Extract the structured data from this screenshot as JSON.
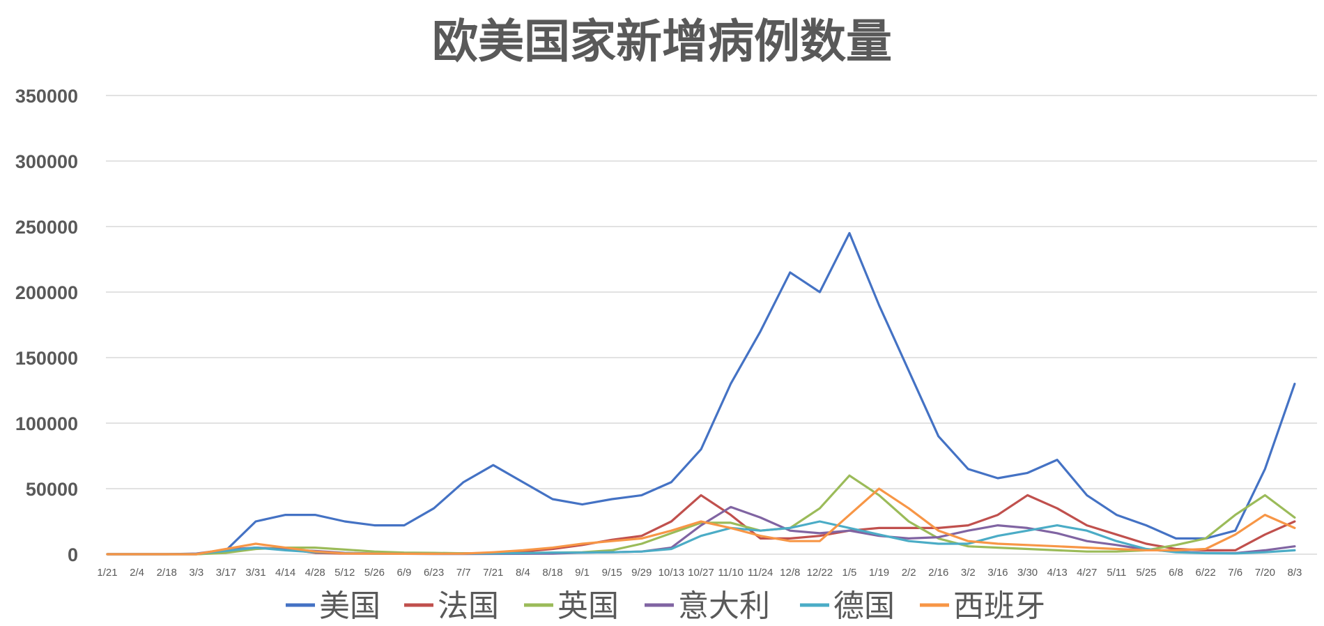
{
  "chart_data": {
    "type": "line",
    "title": "欧美国家新增病例数量",
    "xlabel": "",
    "ylabel": "",
    "ylim": [
      0,
      350000
    ],
    "yticks": [
      "0",
      "50000",
      "100000",
      "150000",
      "200000",
      "250000",
      "300000",
      "350000"
    ],
    "categories": [
      "1/21",
      "2/4",
      "2/18",
      "3/3",
      "3/17",
      "3/31",
      "4/14",
      "4/28",
      "5/12",
      "5/26",
      "6/9",
      "6/23",
      "7/7",
      "7/21",
      "8/4",
      "8/18",
      "9/1",
      "9/15",
      "9/29",
      "10/13",
      "10/27",
      "11/10",
      "11/24",
      "12/8",
      "12/22",
      "1/5",
      "1/19",
      "2/2",
      "2/16",
      "3/2",
      "3/16",
      "3/30",
      "4/13",
      "4/27",
      "5/11",
      "5/25",
      "6/8",
      "6/22",
      "7/6",
      "7/20",
      "8/3"
    ],
    "grid": true,
    "legend_position": "bottom",
    "series": [
      {
        "name": "美国",
        "color": "#4472c4",
        "values": [
          0,
          0,
          0,
          5,
          3000,
          25000,
          30000,
          30000,
          25000,
          22000,
          22000,
          35000,
          55000,
          68000,
          55000,
          42000,
          38000,
          42000,
          45000,
          55000,
          80000,
          130000,
          170000,
          215000,
          200000,
          245000,
          190000,
          140000,
          90000,
          65000,
          58000,
          62000,
          72000,
          45000,
          30000,
          22000,
          12000,
          12000,
          18000,
          65000,
          130000
        ]
      },
      {
        "name": "法国",
        "color": "#c0504d",
        "values": [
          0,
          0,
          0,
          0,
          1500,
          5000,
          4000,
          1000,
          500,
          400,
          400,
          500,
          700,
          900,
          2000,
          4000,
          7000,
          11000,
          14000,
          25000,
          45000,
          30000,
          12000,
          12000,
          14000,
          18000,
          20000,
          20000,
          20000,
          22000,
          30000,
          45000,
          35000,
          22000,
          15000,
          8000,
          4000,
          3000,
          3000,
          15000,
          25000
        ]
      },
      {
        "name": "英国",
        "color": "#9bbb59",
        "values": [
          0,
          0,
          0,
          0,
          1000,
          4000,
          5000,
          5000,
          3500,
          2000,
          1200,
          1000,
          700,
          700,
          900,
          1200,
          1500,
          3000,
          8000,
          16000,
          24000,
          24000,
          18000,
          20000,
          35000,
          60000,
          45000,
          25000,
          12000,
          6000,
          5000,
          4000,
          3000,
          2000,
          2000,
          3000,
          7000,
          12000,
          30000,
          45000,
          28000
        ]
      },
      {
        "name": "意大利",
        "color": "#8064a2",
        "values": [
          0,
          0,
          0,
          500,
          3500,
          5000,
          3500,
          2500,
          1000,
          500,
          300,
          200,
          200,
          250,
          300,
          500,
          1200,
          1500,
          2000,
          5000,
          22000,
          36000,
          28000,
          18000,
          16000,
          18000,
          14000,
          12000,
          13000,
          18000,
          22000,
          20000,
          16000,
          10000,
          7000,
          3500,
          2000,
          1000,
          800,
          3000,
          6000
        ]
      },
      {
        "name": "德国",
        "color": "#4bacc6",
        "values": [
          0,
          0,
          0,
          200,
          2500,
          5000,
          3000,
          1500,
          800,
          500,
          400,
          400,
          400,
          600,
          800,
          1200,
          1200,
          1500,
          2000,
          4000,
          14000,
          20000,
          18000,
          20000,
          25000,
          20000,
          15000,
          10000,
          8000,
          8000,
          14000,
          18000,
          22000,
          18000,
          10000,
          4000,
          1500,
          800,
          600,
          1500,
          3000
        ]
      },
      {
        "name": "西班牙",
        "color": "#f79646",
        "values": [
          0,
          0,
          0,
          0,
          4000,
          8000,
          5000,
          2000,
          600,
          400,
          300,
          300,
          500,
          1500,
          3000,
          5000,
          8000,
          10000,
          12000,
          18000,
          25000,
          20000,
          14000,
          10000,
          10000,
          30000,
          50000,
          35000,
          18000,
          10000,
          8000,
          7000,
          6000,
          5000,
          4000,
          3000,
          3000,
          4000,
          15000,
          30000,
          20000
        ]
      }
    ]
  }
}
